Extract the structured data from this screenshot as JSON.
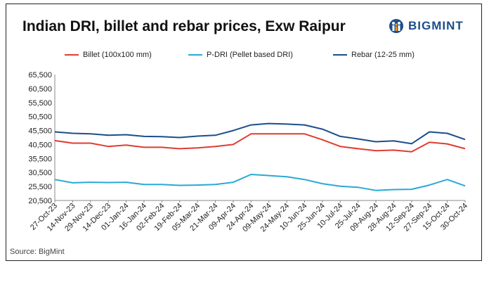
{
  "header": {
    "title": "Indian DRI, billet and rebar prices, Exw Raipur",
    "logo_text": "BIGMINT"
  },
  "source": "Source: BigMint",
  "chart_data": {
    "type": "line",
    "title": "Indian DRI, billet and rebar prices, Exw Raipur",
    "xlabel": "",
    "ylabel": "",
    "ylim": [
      20500,
      65500
    ],
    "yticks": [
      "65,500",
      "60,500",
      "55,500",
      "50,500",
      "45,500",
      "40,500",
      "35,500",
      "30,500",
      "25,500",
      "20,500"
    ],
    "ytick_values": [
      65500,
      60500,
      55500,
      50500,
      45500,
      40500,
      35500,
      30500,
      25500,
      20500
    ],
    "grid": false,
    "legend": "top",
    "x": [
      "27-Oct-23",
      "14-Nov-23",
      "29-Nov-23",
      "14-Dec-23",
      "01-Jan-24",
      "16-Jan-24",
      "02-Feb-24",
      "19-Feb-24",
      "05-Mar-24",
      "21-Mar-24",
      "09-Apr-24",
      "24-Apr-24",
      "09-May-24",
      "24-May-24",
      "10-Jun-24",
      "25-Jun-24",
      "10-Jul-24",
      "25-Jul-24",
      "09-Aug-24",
      "28-Aug-24",
      "12-Sep-24",
      "27-Sep-24",
      "15-Oct-24",
      "30-Oct-24"
    ],
    "series": [
      {
        "name": "Billet (100x100 mm)",
        "color": "#e03c31",
        "values": [
          41900,
          41000,
          41000,
          39800,
          40300,
          39500,
          39500,
          39000,
          39300,
          39800,
          40500,
          44300,
          44300,
          44300,
          44300,
          42200,
          39800,
          39000,
          38300,
          38500,
          37900,
          41300,
          40700,
          39000
        ]
      },
      {
        "name": "P-DRI (Pellet based DRI)",
        "color": "#29a9d6",
        "values": [
          28000,
          26800,
          27000,
          26900,
          27000,
          26200,
          26200,
          25900,
          26000,
          26200,
          27000,
          29800,
          29400,
          29000,
          28000,
          26500,
          25600,
          25200,
          24100,
          24400,
          24500,
          26000,
          28000,
          25700
        ]
      },
      {
        "name": "Rebar (12-25 mm)",
        "color": "#1c4e8a",
        "values": [
          45000,
          44500,
          44300,
          43800,
          44000,
          43400,
          43300,
          43000,
          43500,
          43800,
          45500,
          47500,
          48000,
          47800,
          47500,
          46000,
          43400,
          42500,
          41500,
          41800,
          40800,
          45000,
          44500,
          42300
        ]
      }
    ]
  }
}
